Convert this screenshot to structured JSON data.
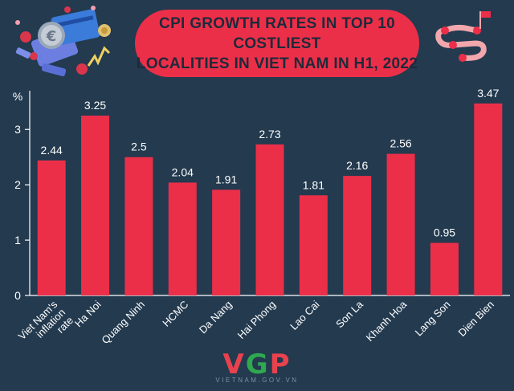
{
  "title": {
    "line1": "CPI GROWTH RATES IN TOP 10 COSTLIEST",
    "line2": "LOCALITIES IN VIET NAM IN H1, 2022"
  },
  "chart_data": {
    "type": "bar",
    "title": "CPI GROWTH RATES IN TOP 10 COSTLIEST LOCALITIES IN VIET NAM IN H1, 2022",
    "ylabel": "%",
    "xlabel": "",
    "ylim": [
      0,
      3.7
    ],
    "yticks": [
      0,
      1,
      2,
      3
    ],
    "grid": false,
    "categories": [
      "Viet Nam's inflation rate",
      "Ha Noi",
      "Quang Ninh",
      "HCMC",
      "Da Nang",
      "Hai Phong",
      "Lao Cai",
      "Son La",
      "Khanh Hoa",
      "Lang Son",
      "Dien Bien"
    ],
    "category_lines": [
      [
        "Viet Nam's",
        "inflation",
        "rate"
      ],
      [
        "Ha Noi"
      ],
      [
        "Quang Ninh"
      ],
      [
        "HCMC"
      ],
      [
        "Da Nang"
      ],
      [
        "Hai Phong"
      ],
      [
        "Lao Cai"
      ],
      [
        "Son La"
      ],
      [
        "Khanh Hoa"
      ],
      [
        "Lang Son"
      ],
      [
        "Dien Bien"
      ]
    ],
    "values": [
      2.44,
      3.25,
      2.5,
      2.04,
      1.91,
      2.73,
      1.81,
      2.16,
      2.56,
      0.95,
      3.47
    ],
    "value_labels": [
      "2.44",
      "3.25",
      "2.5",
      "2.04",
      "1.91",
      "2.73",
      "1.81",
      "2.16",
      "2.56",
      "0.95",
      "3.47"
    ]
  },
  "logo": {
    "main_v": "V",
    "main_g": "G",
    "main_p": "P",
    "sub": "VIETNAM.GOV.VN"
  },
  "colors": {
    "background": "#233a4f",
    "bar": "#ec2f49",
    "axis": "#ffffff",
    "text": "#ffffff",
    "title_bg": "#ec2f49",
    "title_text": "#1d2a3a"
  },
  "icons": [
    "euro-coin-card-illustration-icon",
    "route-map-pin-icon"
  ]
}
